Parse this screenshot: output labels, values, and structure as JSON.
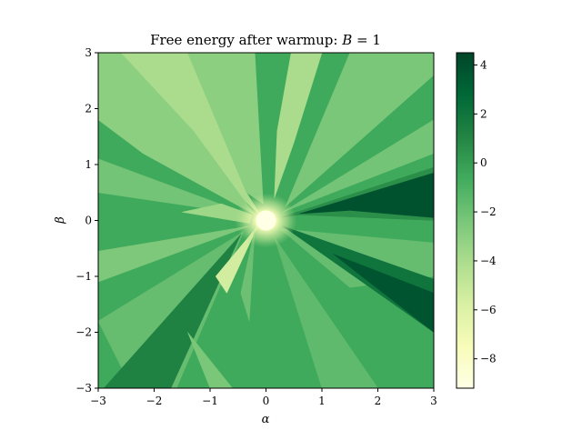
{
  "chart_data": {
    "type": "heatmap",
    "title": "Free energy after warmup: B = 1",
    "title_parts": {
      "prefix": "Free energy after warmup: ",
      "var": "B",
      "suffix": " = 1"
    },
    "xlabel": "α",
    "ylabel": "β",
    "xlim": [
      -3,
      3
    ],
    "ylim": [
      -3,
      3
    ],
    "xticks": [
      -3,
      -2,
      -1,
      0,
      1,
      2,
      3
    ],
    "yticks": [
      -3,
      -2,
      -1,
      0,
      1,
      2,
      3
    ],
    "xtick_labels": [
      "−3",
      "−2",
      "−1",
      "0",
      "1",
      "2",
      "3"
    ],
    "ytick_labels": [
      "−3",
      "−2",
      "−1",
      "0",
      "1",
      "2",
      "3"
    ],
    "colormap": "YlGn",
    "colorbar": {
      "vmin": -9.2,
      "vmax": 4.5,
      "ticks": [
        4,
        2,
        0,
        -2,
        -4,
        -6,
        -8
      ],
      "tick_labels": [
        "4",
        "2",
        "0",
        "−2",
        "−4",
        "−6",
        "−8"
      ],
      "colors": [
        "#ffffe5",
        "#f7fcb9",
        "#d9f0a3",
        "#addd8e",
        "#78c679",
        "#41ab5d",
        "#238443",
        "#006837",
        "#004529"
      ]
    },
    "regions": [
      {
        "value": -0.6,
        "points": [
          [
            -3,
            3
          ],
          [
            3,
            3
          ],
          [
            3,
            -3
          ],
          [
            -3,
            -3
          ]
        ]
      },
      {
        "value": -4.0,
        "points": [
          [
            -2.6,
            3
          ],
          [
            -1.4,
            3
          ],
          [
            -0.35,
            0.5
          ],
          [
            -0.1,
            0.1
          ],
          [
            -0.5,
            0.45
          ],
          [
            -1.3,
            1.6
          ]
        ]
      },
      {
        "value": -4.0,
        "points": [
          [
            0.45,
            3
          ],
          [
            1.0,
            3
          ],
          [
            0.5,
            1.4
          ],
          [
            0.15,
            0.4
          ],
          [
            0.2,
            1.6
          ]
        ]
      },
      {
        "value": -3.0,
        "points": [
          [
            -1.4,
            3
          ],
          [
            -0.2,
            3
          ],
          [
            -0.05,
            0.3
          ],
          [
            -0.35,
            0.5
          ]
        ]
      },
      {
        "value": -3.0,
        "points": [
          [
            -3,
            3
          ],
          [
            -2.6,
            3
          ],
          [
            -1.3,
            1.6
          ],
          [
            -0.2,
            0.1
          ],
          [
            -2.2,
            1.2
          ],
          [
            -3,
            1.8
          ]
        ]
      },
      {
        "value": -2.2,
        "points": [
          [
            -3,
            1.1
          ],
          [
            -0.3,
            0.1
          ],
          [
            -3,
            0.5
          ]
        ]
      },
      {
        "value": -2.5,
        "points": [
          [
            -3,
            -0.55
          ],
          [
            -0.3,
            -0.1
          ],
          [
            -3,
            -1.1
          ]
        ]
      },
      {
        "value": -1.8,
        "points": [
          [
            -3,
            -1.8
          ],
          [
            -0.4,
            -0.2
          ],
          [
            -1.6,
            -3
          ],
          [
            -2.4,
            -3
          ]
        ]
      },
      {
        "value": -1.8,
        "points": [
          [
            0.25,
            -0.15
          ],
          [
            3,
            -0.4
          ],
          [
            3,
            -1.0
          ],
          [
            1.5,
            -1.2
          ]
        ]
      },
      {
        "value": -1.6,
        "points": [
          [
            0.15,
            -0.3
          ],
          [
            1.0,
            -3
          ],
          [
            2.0,
            -3
          ]
        ]
      },
      {
        "value": -2.4,
        "points": [
          [
            1.5,
            3
          ],
          [
            3,
            3
          ],
          [
            3,
            2.6
          ],
          [
            0.35,
            0.25
          ]
        ]
      },
      {
        "value": -2.2,
        "points": [
          [
            3,
            1.8
          ],
          [
            3,
            1.2
          ],
          [
            0.3,
            0.15
          ]
        ]
      },
      {
        "value": 0.6,
        "points": [
          [
            0.25,
            0.05
          ],
          [
            3,
            0.95
          ],
          [
            3,
            0.0
          ],
          [
            0.6,
            0.1
          ]
        ]
      },
      {
        "value": 3.9,
        "points": [
          [
            0.6,
            0.12
          ],
          [
            3,
            0.85
          ],
          [
            3,
            0.05
          ],
          [
            1.5,
            0.18
          ]
        ]
      },
      {
        "value": 2.0,
        "points": [
          [
            0.3,
            -0.1
          ],
          [
            3,
            -1.05
          ],
          [
            3,
            -2.0
          ]
        ]
      },
      {
        "value": 3.7,
        "points": [
          [
            1.2,
            -0.6
          ],
          [
            3,
            -1.3
          ],
          [
            3,
            -2.0
          ]
        ]
      },
      {
        "value": 1.2,
        "points": [
          [
            -0.45,
            -0.25
          ],
          [
            -2.9,
            -3
          ],
          [
            -1.7,
            -3
          ]
        ]
      },
      {
        "value": -2.4,
        "points": [
          [
            -1.4,
            -2.0
          ],
          [
            -0.6,
            -3
          ],
          [
            -1.0,
            -3
          ]
        ]
      },
      {
        "value": -3.6,
        "points": [
          [
            -0.25,
            0.1
          ],
          [
            -0.8,
            0.3
          ],
          [
            -1.5,
            0.15
          ],
          [
            -0.3,
            -0.05
          ]
        ]
      },
      {
        "value": -5.5,
        "points": [
          [
            -0.15,
            -0.1
          ],
          [
            -0.7,
            -1.3
          ],
          [
            -0.9,
            -1.0
          ]
        ]
      },
      {
        "value": -2.0,
        "points": [
          [
            -0.2,
            -0.15
          ],
          [
            -0.45,
            -1.3
          ],
          [
            -0.3,
            -1.8
          ]
        ]
      }
    ],
    "hotspot": {
      "x": 0.0,
      "y": 0.0,
      "value": -9.2
    }
  }
}
